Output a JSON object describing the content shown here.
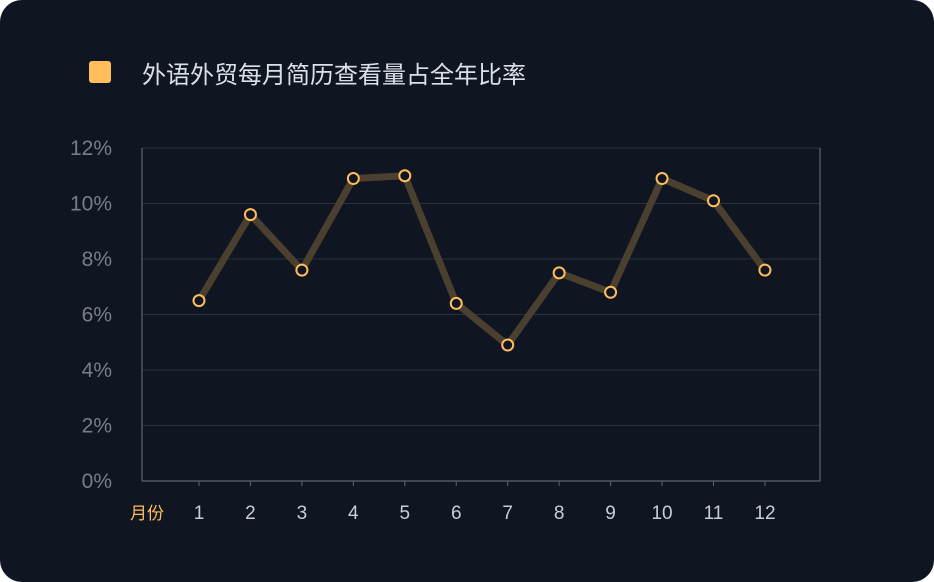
{
  "legend": {
    "label": "外语外贸每月简历查看量占全年比率"
  },
  "colors": {
    "background": "#0f1622",
    "accent": "#ffbd5c",
    "line": "#4b3f2f",
    "grid": "#2a313e",
    "axis": "#5d6573"
  },
  "chart_data": {
    "type": "line",
    "title": "外语外贸每月简历查看量占全年比率",
    "xlabel": "月份",
    "ylabel": "",
    "categories": [
      "1",
      "2",
      "3",
      "4",
      "5",
      "6",
      "7",
      "8",
      "9",
      "10",
      "11",
      "12"
    ],
    "yticks": [
      "0%",
      "2%",
      "4%",
      "6%",
      "8%",
      "10%",
      "12%"
    ],
    "ylim": [
      0,
      12
    ],
    "grid": true,
    "legend": "top-left",
    "series": [
      {
        "name": "外语外贸每月简历查看量占全年比率",
        "values": [
          6.5,
          9.6,
          7.6,
          10.9,
          11.0,
          6.4,
          4.9,
          7.5,
          6.8,
          10.9,
          10.1,
          7.6
        ]
      }
    ]
  }
}
